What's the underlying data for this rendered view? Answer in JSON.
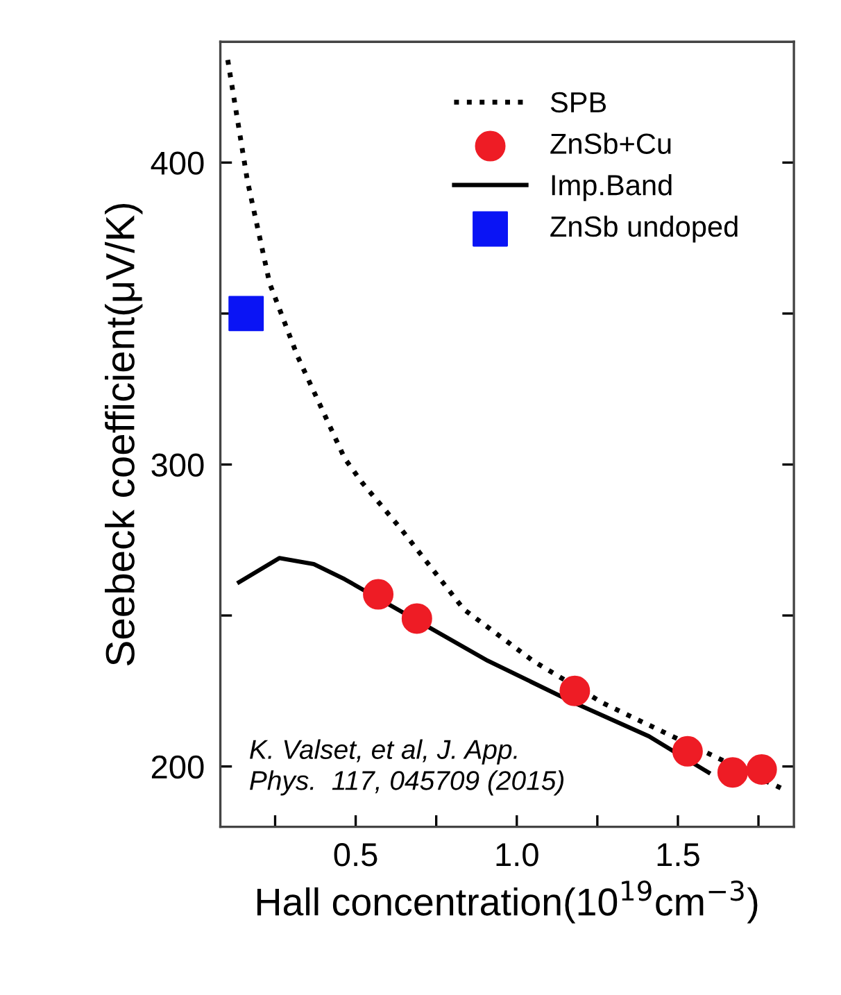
{
  "chart_data": {
    "type": "line",
    "xlabel": "Hall concentration(10$^{19}$cm$^{−3}$)",
    "ylabel": "Seebeck coefficient(μV/K)",
    "xlim": [
      0.08,
      1.86
    ],
    "ylim": [
      180,
      440
    ],
    "xticks": [
      {
        "value": 0.25,
        "label": null
      },
      0.5,
      {
        "value": 0.75,
        "label": null
      },
      {
        "value": 1.0,
        "label": "1.0"
      },
      {
        "value": 1.25,
        "label": null
      },
      1.5,
      {
        "value": 1.75,
        "label": null
      }
    ],
    "yticks": [
      200,
      {
        "value": 250,
        "label": null
      },
      300,
      {
        "value": 350,
        "label": null
      },
      400
    ],
    "grid": false,
    "legend": "top right",
    "series": [
      {
        "name": "SPB",
        "color": "#000000",
        "line_style": "dotted",
        "x": [
          0.103,
          0.164,
          0.233,
          0.319,
          0.466,
          0.52,
          0.638,
          0.836,
          1.05,
          1.267,
          1.62,
          1.836
        ],
        "values": [
          434,
          394,
          360,
          336,
          302,
          294,
          279,
          252,
          235,
          221,
          203,
          192
        ]
      },
      {
        "name": "ZnSb+Cu",
        "type": "scatter",
        "color": "#ee1c25",
        "marker": "circle",
        "x": [
          0.57,
          0.69,
          1.18,
          1.53,
          1.67,
          1.76
        ],
        "values": [
          257,
          249,
          225,
          205,
          198,
          199
        ]
      },
      {
        "name": "Imp.Band",
        "color": "#000000",
        "line_style": "solid",
        "x": [
          0.138,
          0.263,
          0.37,
          0.466,
          0.91,
          1.18,
          1.41,
          1.595
        ],
        "values": [
          261,
          269,
          267,
          262,
          235,
          221,
          210,
          198
        ]
      },
      {
        "name": "ZnSb undoped",
        "type": "scatter",
        "color": "#0a14f5",
        "marker": "square",
        "x": [
          0.16
        ],
        "values": [
          350
        ]
      }
    ],
    "annotations": [
      "K. Valset, et al, J. App.\nPhys.  117, 045709 (2015)"
    ]
  }
}
